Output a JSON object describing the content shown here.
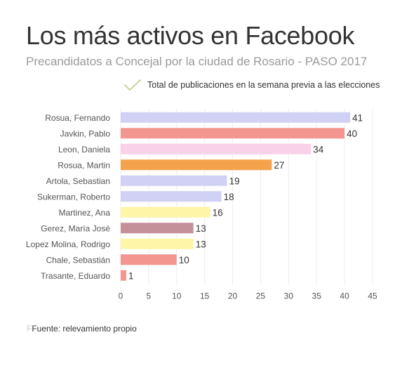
{
  "chart_data": {
    "type": "bar",
    "orientation": "horizontal",
    "title": "Los más activos en Facebook",
    "subtitle": "Precandidatos a Concejal por la ciudad de Rosario - PASO 2017",
    "categories": [
      "Rosua, Fernando",
      "Javkin, Pablo",
      "Leon, Daniela",
      "Rosua, Martin",
      "Artola, Sebastian",
      "Sukerman, Roberto",
      "Martinez, Ana",
      "Gerez, María José",
      "Lopez Molina, Rodrigo",
      "Chale, Sebastián",
      "Trasante, Eduardo"
    ],
    "series": [
      {
        "name": "Total de publicaciones en la semana previa a las elecciones",
        "values": [
          41,
          40,
          34,
          27,
          19,
          18,
          16,
          13,
          13,
          10,
          1
        ]
      }
    ],
    "bar_colors": [
      "#d0d1f4",
      "#f2968f",
      "#f9d2e8",
      "#f5a24c",
      "#d0d1f4",
      "#d0d1f4",
      "#fef5a7",
      "#c4919b",
      "#fef5a7",
      "#f2968f",
      "#f2968f"
    ],
    "xlim": [
      0,
      45
    ],
    "xticks": [
      0,
      5,
      10,
      15,
      20,
      25,
      30,
      35,
      40,
      45
    ],
    "grid": true,
    "legend_position": "top",
    "legend_icon": "check-icon",
    "legend_icon_color": "#c9d29b",
    "source": "Fuente: relevamiento propio"
  }
}
